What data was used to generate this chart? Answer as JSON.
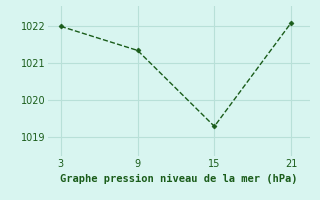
{
  "x": [
    3,
    9,
    15,
    21
  ],
  "y": [
    1022.0,
    1021.35,
    1019.3,
    1022.1
  ],
  "line_color": "#1a5c1a",
  "marker": "D",
  "marker_size": 2.5,
  "line_width": 1.0,
  "bg_color": "#d8f5f0",
  "grid_color": "#b8e0d8",
  "xlabel": "Graphe pression niveau de la mer (hPa)",
  "xlabel_color": "#1a5c1a",
  "xlabel_fontsize": 7.5,
  "tick_color": "#1a5c1a",
  "tick_fontsize": 7,
  "xlim": [
    2.0,
    22.5
  ],
  "ylim": [
    1018.5,
    1022.55
  ],
  "xticks": [
    3,
    9,
    15,
    21
  ],
  "yticks": [
    1019,
    1020,
    1021,
    1022
  ]
}
